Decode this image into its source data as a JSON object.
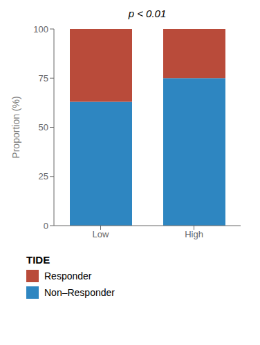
{
  "chart_data": {
    "type": "bar",
    "stacked": true,
    "ylabel": "Proportion (%)",
    "annotation": "p < 0.01",
    "legend_title": "TIDE",
    "categories": [
      "Low",
      "High"
    ],
    "series": [
      {
        "name": "Non–Responder",
        "color": "#2E86C1",
        "values": [
          63,
          75
        ]
      },
      {
        "name": "Responder",
        "color": "#B94B3A",
        "values": [
          37,
          25
        ]
      }
    ],
    "ylim": [
      0,
      100
    ],
    "yticks": [
      0,
      25,
      50,
      75,
      100
    ],
    "grid": false,
    "legend": "bottom"
  }
}
